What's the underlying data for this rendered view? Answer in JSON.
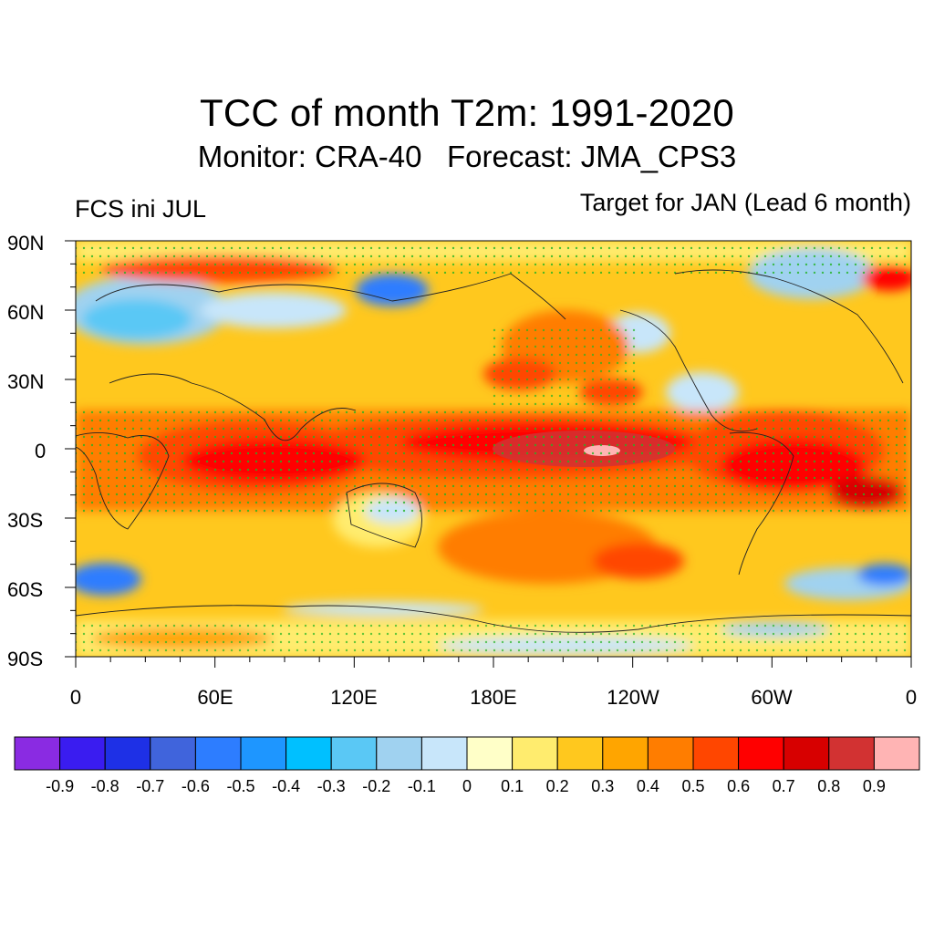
{
  "header": {
    "title": "TCC of month T2m: 1991-2020",
    "subtitle": "Monitor: CRA-40   Forecast: JMA_CPS3",
    "left_label": "FCS ini JUL",
    "right_label": "Target for JAN (Lead 6 month)"
  },
  "axes": {
    "lat_labels": [
      "90N",
      "60N",
      "30N",
      "0",
      "30S",
      "60S",
      "90S"
    ],
    "lon_labels": [
      "0",
      "60E",
      "120E",
      "180E",
      "120W",
      "60W",
      "0"
    ]
  },
  "colorbar": {
    "colors": [
      "#8a2be2",
      "#3a1cf0",
      "#1e30e6",
      "#4064dc",
      "#2d7dff",
      "#1e96ff",
      "#00c0ff",
      "#5ac8f5",
      "#a0d2f0",
      "#c8e6fa",
      "#ffffc8",
      "#ffec6e",
      "#ffc81e",
      "#ffa500",
      "#ff7d00",
      "#ff4600",
      "#ff0000",
      "#d70000",
      "#d23232",
      "#ffb4b4"
    ],
    "labels": [
      "-0.9",
      "-0.8",
      "-0.7",
      "-0.6",
      "-0.5",
      "-0.4",
      "-0.3",
      "-0.2",
      "-0.1",
      "0",
      "0.1",
      "0.2",
      "0.3",
      "0.4",
      "0.5",
      "0.6",
      "0.7",
      "0.8",
      "0.9"
    ]
  },
  "legend_note": ""
}
